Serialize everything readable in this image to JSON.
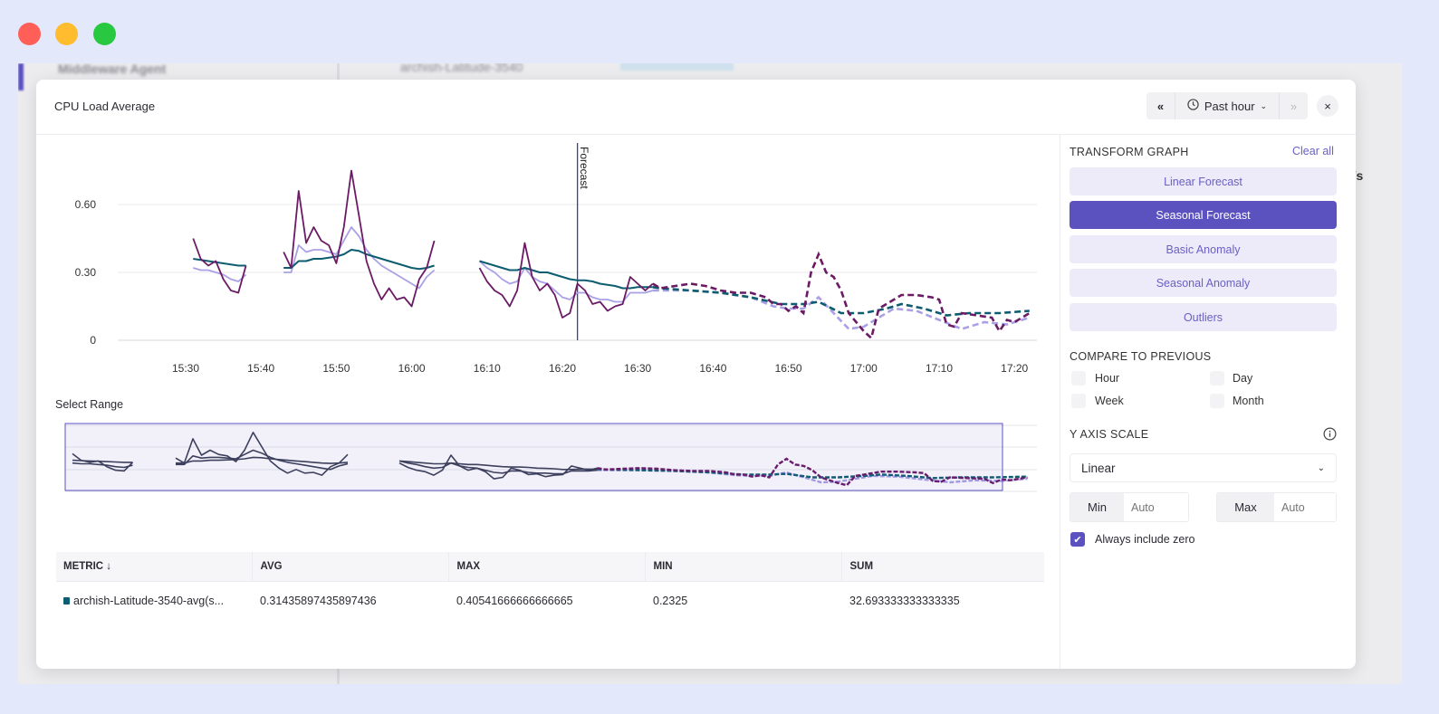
{
  "window": {
    "controls": [
      "close",
      "minimize",
      "maximize"
    ],
    "colors": {
      "close": "#ff5f57",
      "minimize": "#febc2e",
      "maximize": "#28c840"
    }
  },
  "background": {
    "agent_label": "Middleware Agent",
    "host_label": "archish-Latitude-3540",
    "unit_fragment": "es/s",
    "tick_fragment": "30"
  },
  "modal": {
    "title": "CPU Load Average",
    "time": {
      "prev_icon": "double-chevron-left-icon",
      "clock_icon": "clock-icon",
      "range": "Past hour",
      "next_icon": "double-chevron-right-icon"
    },
    "close_label": "×",
    "select_range_label": "Select Range",
    "forecast_marker": {
      "label": "Forecast",
      "time": "16:22"
    }
  },
  "transform": {
    "title": "TRANSFORM GRAPH",
    "clear_all": "Clear all",
    "buttons": [
      {
        "label": "Linear Forecast",
        "selected": false
      },
      {
        "label": "Seasonal Forecast",
        "selected": true
      },
      {
        "label": "Basic Anomaly",
        "selected": false
      },
      {
        "label": "Seasonal Anomaly",
        "selected": false
      },
      {
        "label": "Outliers",
        "selected": false
      }
    ],
    "compare_title": "COMPARE TO PREVIOUS",
    "compare": [
      {
        "label": "Hour",
        "checked": false
      },
      {
        "label": "Day",
        "checked": false
      },
      {
        "label": "Week",
        "checked": false
      },
      {
        "label": "Month",
        "checked": false
      }
    ],
    "yaxis_title": "Y AXIS SCALE",
    "scale": "Linear",
    "min_label": "Min",
    "min_placeholder": "Auto",
    "max_label": "Max",
    "max_placeholder": "Auto",
    "include_zero_label": "Always include zero",
    "include_zero": true,
    "accent": "#5b52c0"
  },
  "table": {
    "headers": [
      "METRIC",
      "AVG",
      "MAX",
      "MIN",
      "SUM"
    ],
    "sort_icon": "arrow-down-icon",
    "rows": [
      {
        "metric": "archish-Latitude-3540-avg(s...",
        "avg": "0.31435897435897436",
        "max": "0.40541666666666665",
        "min": "0.2325",
        "sum": "32.693333333333335",
        "color": "#0d5c70"
      }
    ]
  },
  "chart_data": {
    "type": "line",
    "ylim": [
      0,
      0.75
    ],
    "yticks": [
      "0",
      "0.30",
      "0.60"
    ],
    "ytick_values": [
      0,
      0.3,
      0.6
    ],
    "xticks": [
      "15:30",
      "15:40",
      "15:50",
      "16:00",
      "16:10",
      "16:20",
      "16:30",
      "16:40",
      "16:50",
      "17:00",
      "17:10",
      "17:20"
    ],
    "grid": true,
    "series": [
      {
        "role": "raw",
        "color": "#6b1a66",
        "segments": [
          [
            [
              "15:31",
              0.45
            ],
            [
              "15:32",
              0.36
            ],
            [
              "15:33",
              0.33
            ],
            [
              "15:34",
              0.35
            ],
            [
              "15:35",
              0.27
            ],
            [
              "15:36",
              0.22
            ],
            [
              "15:37",
              0.21
            ],
            [
              "15:38",
              0.33
            ]
          ],
          [
            [
              "15:43",
              0.39
            ],
            [
              "15:44",
              0.32
            ],
            [
              "15:45",
              0.66
            ],
            [
              "15:46",
              0.43
            ],
            [
              "15:47",
              0.5
            ],
            [
              "15:48",
              0.44
            ],
            [
              "15:49",
              0.42
            ],
            [
              "15:50",
              0.34
            ],
            [
              "15:51",
              0.5
            ],
            [
              "15:52",
              0.75
            ],
            [
              "15:53",
              0.55
            ],
            [
              "15:54",
              0.35
            ],
            [
              "15:55",
              0.25
            ],
            [
              "15:56",
              0.18
            ],
            [
              "15:57",
              0.23
            ],
            [
              "15:58",
              0.18
            ],
            [
              "15:59",
              0.19
            ],
            [
              "16:00",
              0.15
            ],
            [
              "16:01",
              0.27
            ],
            [
              "16:02",
              0.32
            ],
            [
              "16:03",
              0.44
            ]
          ],
          [
            [
              "16:09",
              0.32
            ],
            [
              "16:10",
              0.26
            ],
            [
              "16:11",
              0.22
            ],
            [
              "16:12",
              0.2
            ],
            [
              "16:13",
              0.15
            ],
            [
              "16:14",
              0.22
            ],
            [
              "16:15",
              0.43
            ],
            [
              "16:16",
              0.28
            ],
            [
              "16:17",
              0.22
            ],
            [
              "16:18",
              0.25
            ],
            [
              "16:19",
              0.2
            ],
            [
              "16:20",
              0.1
            ],
            [
              "16:21",
              0.12
            ],
            [
              "16:22",
              0.25
            ],
            [
              "16:23",
              0.22
            ],
            [
              "16:24",
              0.16
            ],
            [
              "16:25",
              0.17
            ],
            [
              "16:26",
              0.13
            ],
            [
              "16:27",
              0.15
            ],
            [
              "16:28",
              0.16
            ],
            [
              "16:29",
              0.28
            ],
            [
              "16:30",
              0.25
            ],
            [
              "16:31",
              0.22
            ],
            [
              "16:32",
              0.25
            ]
          ]
        ],
        "forecast": [
          [
            "16:33",
            0.23
          ],
          [
            "16:35",
            0.24
          ],
          [
            "16:37",
            0.25
          ],
          [
            "16:39",
            0.24
          ],
          [
            "16:41",
            0.22
          ],
          [
            "16:43",
            0.21
          ],
          [
            "16:45",
            0.21
          ],
          [
            "16:47",
            0.19
          ],
          [
            "16:48",
            0.16
          ],
          [
            "16:49",
            0.16
          ],
          [
            "16:50",
            0.13
          ],
          [
            "16:51",
            0.15
          ],
          [
            "16:52",
            0.12
          ],
          [
            "16:53",
            0.3
          ],
          [
            "16:54",
            0.38
          ],
          [
            "16:55",
            0.3
          ],
          [
            "16:56",
            0.28
          ],
          [
            "16:57",
            0.22
          ],
          [
            "16:58",
            0.12
          ],
          [
            "16:59",
            0.08
          ],
          [
            "17:00",
            0.04
          ],
          [
            "17:01",
            0.01
          ],
          [
            "17:02",
            0.14
          ],
          [
            "17:03",
            0.16
          ],
          [
            "17:04",
            0.18
          ],
          [
            "17:05",
            0.2
          ],
          [
            "17:07",
            0.2
          ],
          [
            "17:09",
            0.19
          ],
          [
            "17:10",
            0.18
          ],
          [
            "17:11",
            0.07
          ],
          [
            "17:12",
            0.06
          ],
          [
            "17:13",
            0.12
          ],
          [
            "17:15",
            0.11
          ],
          [
            "17:17",
            0.1
          ],
          [
            "17:18",
            0.04
          ],
          [
            "17:19",
            0.09
          ],
          [
            "17:20",
            0.08
          ],
          [
            "17:22",
            0.12
          ]
        ]
      },
      {
        "role": "smoothed",
        "color": "#a9a0e6",
        "segments": [
          [
            [
              "15:31",
              0.32
            ],
            [
              "15:32",
              0.31
            ],
            [
              "15:33",
              0.31
            ],
            [
              "15:34",
              0.3
            ],
            [
              "15:35",
              0.29
            ],
            [
              "15:36",
              0.27
            ],
            [
              "15:37",
              0.26
            ],
            [
              "15:38",
              0.29
            ]
          ],
          [
            [
              "15:43",
              0.3
            ],
            [
              "15:44",
              0.3
            ],
            [
              "15:45",
              0.42
            ],
            [
              "15:46",
              0.39
            ],
            [
              "15:47",
              0.4
            ],
            [
              "15:48",
              0.4
            ],
            [
              "15:49",
              0.39
            ],
            [
              "15:50",
              0.38
            ],
            [
              "15:51",
              0.44
            ],
            [
              "15:52",
              0.5
            ],
            [
              "15:53",
              0.46
            ],
            [
              "15:54",
              0.4
            ],
            [
              "15:55",
              0.36
            ],
            [
              "15:56",
              0.33
            ],
            [
              "15:57",
              0.31
            ],
            [
              "15:58",
              0.29
            ],
            [
              "15:59",
              0.27
            ],
            [
              "16:00",
              0.25
            ],
            [
              "16:01",
              0.23
            ],
            [
              "16:02",
              0.28
            ],
            [
              "16:03",
              0.31
            ]
          ],
          [
            [
              "16:09",
              0.35
            ],
            [
              "16:10",
              0.32
            ],
            [
              "16:11",
              0.3
            ],
            [
              "16:12",
              0.27
            ],
            [
              "16:13",
              0.25
            ],
            [
              "16:14",
              0.26
            ],
            [
              "16:15",
              0.32
            ],
            [
              "16:16",
              0.28
            ],
            [
              "16:17",
              0.26
            ],
            [
              "16:18",
              0.25
            ],
            [
              "16:19",
              0.22
            ],
            [
              "16:20",
              0.19
            ],
            [
              "16:21",
              0.18
            ],
            [
              "16:22",
              0.21
            ],
            [
              "16:23",
              0.21
            ],
            [
              "16:24",
              0.19
            ],
            [
              "16:25",
              0.18
            ],
            [
              "16:26",
              0.18
            ],
            [
              "16:27",
              0.17
            ],
            [
              "16:28",
              0.17
            ],
            [
              "16:29",
              0.21
            ],
            [
              "16:30",
              0.21
            ],
            [
              "16:31",
              0.21
            ],
            [
              "16:32",
              0.22
            ]
          ]
        ],
        "forecast": [
          [
            "16:33",
            0.22
          ],
          [
            "16:37",
            0.22
          ],
          [
            "16:41",
            0.21
          ],
          [
            "16:45",
            0.19
          ],
          [
            "16:48",
            0.15
          ],
          [
            "16:50",
            0.14
          ],
          [
            "16:52",
            0.14
          ],
          [
            "16:54",
            0.19
          ],
          [
            "16:56",
            0.12
          ],
          [
            "16:58",
            0.05
          ],
          [
            "17:00",
            0.06
          ],
          [
            "17:02",
            0.1
          ],
          [
            "17:04",
            0.14
          ],
          [
            "17:07",
            0.13
          ],
          [
            "17:10",
            0.09
          ],
          [
            "17:13",
            0.05
          ],
          [
            "17:16",
            0.08
          ],
          [
            "17:19",
            0.07
          ],
          [
            "17:22",
            0.1
          ]
        ]
      },
      {
        "role": "trend",
        "color": "#0d5c70",
        "segments": [
          [
            [
              "15:31",
              0.36
            ],
            [
              "15:32",
              0.355
            ],
            [
              "15:33",
              0.35
            ],
            [
              "15:34",
              0.345
            ],
            [
              "15:35",
              0.34
            ],
            [
              "15:36",
              0.335
            ],
            [
              "15:37",
              0.33
            ],
            [
              "15:38",
              0.33
            ]
          ],
          [
            [
              "15:43",
              0.32
            ],
            [
              "15:44",
              0.32
            ],
            [
              "15:45",
              0.35
            ],
            [
              "15:46",
              0.35
            ],
            [
              "15:47",
              0.36
            ],
            [
              "15:48",
              0.36
            ],
            [
              "15:49",
              0.365
            ],
            [
              "15:50",
              0.37
            ],
            [
              "15:51",
              0.38
            ],
            [
              "15:52",
              0.4
            ],
            [
              "15:53",
              0.395
            ],
            [
              "15:54",
              0.38
            ],
            [
              "15:55",
              0.37
            ],
            [
              "15:56",
              0.36
            ],
            [
              "15:57",
              0.35
            ],
            [
              "15:58",
              0.34
            ],
            [
              "15:59",
              0.33
            ],
            [
              "16:00",
              0.32
            ],
            [
              "16:01",
              0.315
            ],
            [
              "16:02",
              0.32
            ],
            [
              "16:03",
              0.33
            ]
          ],
          [
            [
              "16:09",
              0.35
            ],
            [
              "16:10",
              0.34
            ],
            [
              "16:11",
              0.33
            ],
            [
              "16:12",
              0.32
            ],
            [
              "16:13",
              0.31
            ],
            [
              "16:14",
              0.31
            ],
            [
              "16:15",
              0.32
            ],
            [
              "16:16",
              0.31
            ],
            [
              "16:17",
              0.3
            ],
            [
              "16:18",
              0.3
            ],
            [
              "16:19",
              0.29
            ],
            [
              "16:20",
              0.28
            ],
            [
              "16:21",
              0.27
            ],
            [
              "16:22",
              0.265
            ],
            [
              "16:23",
              0.265
            ],
            [
              "16:24",
              0.26
            ],
            [
              "16:25",
              0.25
            ],
            [
              "16:26",
              0.245
            ],
            [
              "16:27",
              0.24
            ],
            [
              "16:28",
              0.23
            ],
            [
              "16:29",
              0.23
            ],
            [
              "16:30",
              0.235
            ],
            [
              "16:31",
              0.235
            ],
            [
              "16:32",
              0.235
            ]
          ]
        ],
        "forecast": [
          [
            "16:33",
            0.23
          ],
          [
            "16:37",
            0.22
          ],
          [
            "16:41",
            0.21
          ],
          [
            "16:45",
            0.19
          ],
          [
            "16:49",
            0.16
          ],
          [
            "16:52",
            0.16
          ],
          [
            "16:54",
            0.17
          ],
          [
            "16:57",
            0.12
          ],
          [
            "17:00",
            0.12
          ],
          [
            "17:03",
            0.14
          ],
          [
            "17:05",
            0.16
          ],
          [
            "17:08",
            0.14
          ],
          [
            "17:11",
            0.11
          ],
          [
            "17:14",
            0.12
          ],
          [
            "17:18",
            0.12
          ],
          [
            "17:22",
            0.13
          ]
        ]
      }
    ],
    "range_selector": {
      "actual_color": "#3a3f55",
      "selected_from": "15:30",
      "selected_to": "17:19"
    }
  }
}
